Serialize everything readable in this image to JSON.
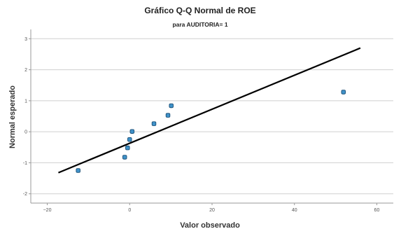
{
  "chart_data": {
    "type": "scatter",
    "title": "Gráfico Q-Q Normal de ROE",
    "subtitle": "para AUDITORIA= 1",
    "xlabel": "Valor observado",
    "ylabel": "Normal esperado",
    "xlim": [
      -24,
      64
    ],
    "ylim": [
      -2.3,
      3.3
    ],
    "xticks": [
      -20,
      0,
      20,
      40,
      60
    ],
    "yticks": [
      -2,
      -1,
      0,
      1,
      2,
      3
    ],
    "grid": "horizontal",
    "points": [
      {
        "x": -12.5,
        "y": -1.25
      },
      {
        "x": -1.2,
        "y": -0.82
      },
      {
        "x": -0.5,
        "y": -0.52
      },
      {
        "x": 0.0,
        "y": -0.25
      },
      {
        "x": 0.6,
        "y": 0.01
      },
      {
        "x": 5.9,
        "y": 0.26
      },
      {
        "x": 9.3,
        "y": 0.53
      },
      {
        "x": 10.1,
        "y": 0.84
      },
      {
        "x": 51.9,
        "y": 1.28
      }
    ],
    "reference_line": {
      "x1": -17.3,
      "y1": -1.32,
      "x2": 56.0,
      "y2": 2.7
    },
    "colors": {
      "point_fill": "#3f92c9",
      "point_stroke": "#1b4f77",
      "line": "#000000"
    }
  }
}
